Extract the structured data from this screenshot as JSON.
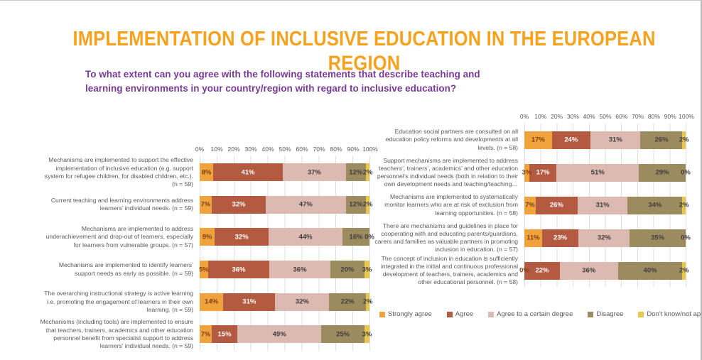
{
  "page": {
    "title": "IMPLEMENTATION OF INCLUSIVE EDUCATION IN THE EUROPEAN REGION",
    "subtitle": "To what extent can you agree with the following statements that describe teaching and learning environments in your country/region with regard to inclusive education?"
  },
  "colors": {
    "title": "#f6a21e",
    "subtitle": "#7a3b96",
    "series": [
      "#f0a33c",
      "#b45a41",
      "#dcb9b1",
      "#9c8b5e",
      "#e8c74f"
    ],
    "label_on_series": [
      "#7f3f14",
      "#ffffff",
      "#404040",
      "#404040",
      "#404040"
    ],
    "gridline": "#dedede",
    "tick_text": "#595959"
  },
  "legend": {
    "labels": [
      "Strongly agree",
      "Agree",
      "Agree  to a certain degree",
      "Disagree",
      "Don't know/not applicable"
    ]
  },
  "chart_data": [
    {
      "type": "bar",
      "orientation": "horizontal-stacked",
      "value_unit": "%",
      "xlim": [
        0,
        100
      ],
      "axis_ticks": [
        "0%",
        "10%",
        "20%",
        "30%",
        "40%",
        "50%",
        "60%",
        "70%",
        "80%",
        "90%",
        "100%"
      ],
      "grid": true,
      "categories": [
        "Mechanisms are implemented to support the effective implementation of inclusive education (e.g. support system for refugee children, for disabled children, etc.). (n = 59)",
        "Current teaching and learning environments address learners’ individual needs. (n = 59)",
        "Mechanisms are implemented to address underachievement and drop-out of learners, especially for learners from vulnerable groups. (n = 57)",
        "Mechanisms are implemented to identify learners’ support needs as early as possible. (n = 59)",
        "The overarching instructional strategy is active learning i.e. promoting the engagement of learners in their own learning. (n = 59)",
        "Mechanisms (including tools) are implemented to ensure that teachers, trainers, academics and other education personnel benefit from specialist support to address learners’ individual needs. (n = 59)"
      ],
      "series": [
        {
          "name": "Strongly agree",
          "values": [
            8,
            7,
            9,
            5,
            14,
            7
          ]
        },
        {
          "name": "Agree",
          "values": [
            41,
            32,
            32,
            36,
            31,
            15
          ]
        },
        {
          "name": "Agree  to a certain degree",
          "values": [
            37,
            47,
            44,
            36,
            32,
            49
          ]
        },
        {
          "name": "Disagree",
          "values": [
            12,
            12,
            16,
            20,
            22,
            25
          ]
        },
        {
          "name": "Don't know/not applicable",
          "values": [
            2,
            2,
            0,
            3,
            2,
            3
          ]
        }
      ]
    },
    {
      "type": "bar",
      "orientation": "horizontal-stacked",
      "value_unit": "%",
      "xlim": [
        0,
        100
      ],
      "axis_ticks": [
        "0%",
        "10%",
        "20%",
        "30%",
        "40%",
        "50%",
        "60%",
        "70%",
        "80%",
        "90%",
        "100%"
      ],
      "grid": true,
      "categories": [
        "Education social partners are consulted on all education policy reforms and developments at all levels. (n = 58)",
        "Support mechanisms are implemented to address teachers’, trainers’, academics’ and other education personnel’s individual needs (both in relation to their own development needs and teaching/teaching…",
        "Mechanisms are implemented to systematically monitor learners who are at risk of exclusion from learning opportunities. (n = 58)",
        "There are mechanisms and guidelines in place for cooperating with and educating parents/guardians, carers and families as valuable partners in promoting inclusion in education. (n = 57)",
        "The concept of inclusion in education is sufficiently integrated in the initial and continuous professional development of teachers, trainers, academics and other educational personnel.  (n = 58)"
      ],
      "series": [
        {
          "name": "Strongly agree",
          "values": [
            17,
            3,
            7,
            11,
            0
          ]
        },
        {
          "name": "Agree",
          "values": [
            24,
            17,
            26,
            23,
            22
          ]
        },
        {
          "name": "Agree  to a certain degree",
          "values": [
            31,
            51,
            31,
            32,
            36
          ]
        },
        {
          "name": "Disagree",
          "values": [
            26,
            29,
            34,
            35,
            40
          ]
        },
        {
          "name": "Don't know/not applicable",
          "values": [
            2,
            0,
            2,
            0,
            2
          ]
        }
      ]
    }
  ]
}
